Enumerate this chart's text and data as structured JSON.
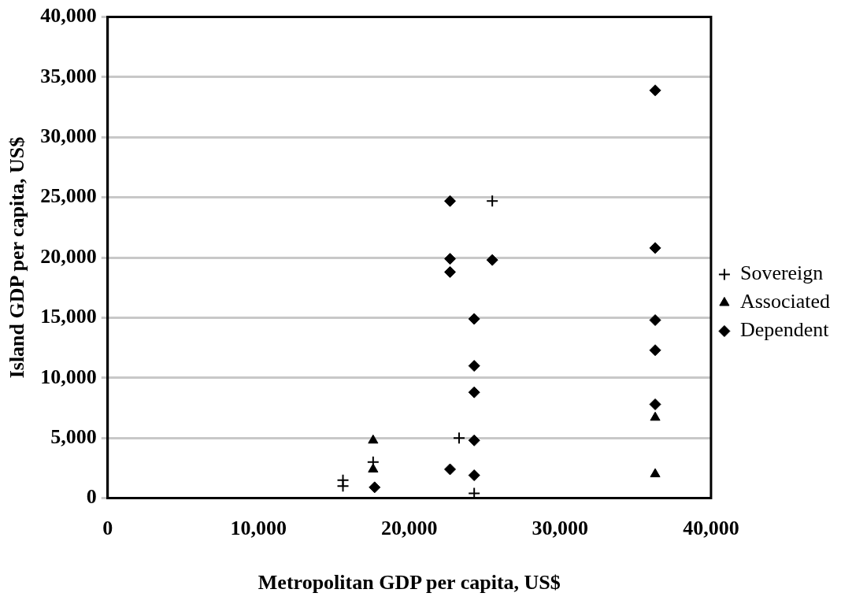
{
  "chart_data": {
    "type": "scatter",
    "xlabel": "Metropolitan GDP per capita, US$",
    "ylabel": "Island GDP per capita, US$",
    "xlim": [
      0,
      40000
    ],
    "xticks": [
      0,
      {
        "value": 10000,
        "label": "10,000"
      },
      {
        "value": 20000,
        "label": "20,000"
      },
      {
        "value": 30000,
        "label": "30,000"
      },
      {
        "value": 40000,
        "label": "40,000"
      }
    ],
    "ylim": [
      0,
      40000
    ],
    "yticks": [
      0,
      {
        "value": 5000,
        "label": "5,000"
      },
      {
        "value": 10000,
        "label": "10,000"
      },
      {
        "value": 15000,
        "label": "15,000"
      },
      {
        "value": 20000,
        "label": "20,000"
      },
      {
        "value": 25000,
        "label": "25,000"
      },
      {
        "value": 30000,
        "label": "30,000"
      },
      {
        "value": 35000,
        "label": "35,000"
      },
      {
        "value": 40000,
        "label": "40,000"
      }
    ],
    "grid": "y",
    "legend": "right",
    "series": [
      {
        "name": "Sovereign",
        "color": "#000000",
        "marker": "cross",
        "x": [
          15600,
          15600,
          17600,
          23300,
          25500,
          24300
        ],
        "values": [
          1500,
          1000,
          3000,
          5000,
          24700,
          400
        ]
      },
      {
        "name": "Associated",
        "color": "#000000",
        "marker": "triangle",
        "x": [
          17600,
          17600,
          36300,
          36300
        ],
        "values": [
          4800,
          2400,
          2000,
          6700
        ]
      },
      {
        "name": "Dependent",
        "color": "#000000",
        "marker": "diamond",
        "x": [
          22700,
          22700,
          22700,
          25500,
          24300,
          24300,
          24300,
          24300,
          22700,
          24300,
          17700,
          36300,
          36300,
          36300,
          36300,
          36300
        ],
        "values": [
          24700,
          19900,
          18800,
          19800,
          14900,
          11000,
          8800,
          4800,
          2400,
          1900,
          900,
          33900,
          20800,
          14800,
          12300,
          7800
        ]
      }
    ]
  }
}
